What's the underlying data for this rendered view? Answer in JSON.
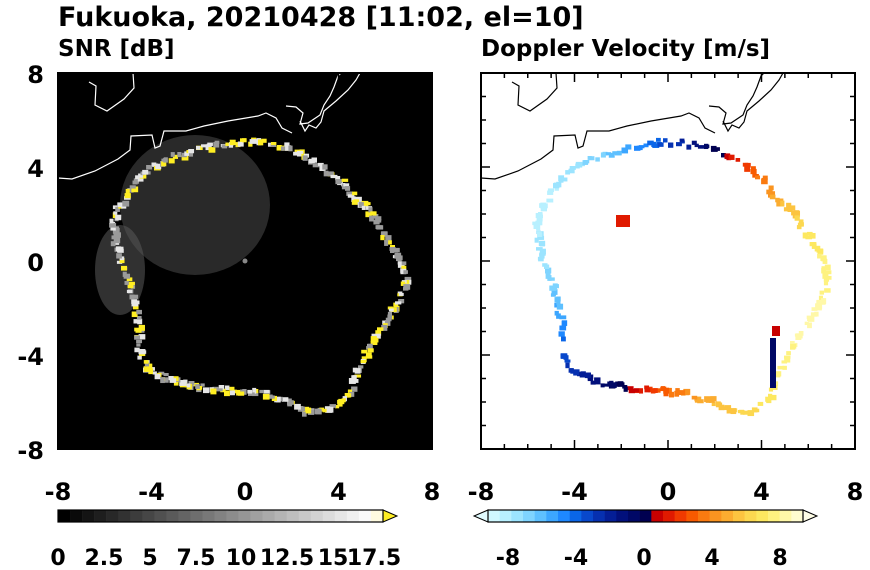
{
  "title": "Fukuoka, 20210428 [11:02, el=10]",
  "colors": {
    "panel_bg": "#000000",
    "coast": "#ffffff",
    "coast_right": "#000000",
    "snr_high": "#ffee22"
  },
  "chart_data": [
    {
      "type": "heatmap",
      "title": "SNR [dB]",
      "xlim": [
        -8,
        8
      ],
      "ylim": [
        -8,
        8
      ],
      "xticks": [
        "-8",
        "-4",
        "0",
        "4",
        "8"
      ],
      "yticks": [
        "8",
        "4",
        "0",
        "-4",
        "-8"
      ],
      "colorbar": {
        "ticks": [
          "0",
          "2.5",
          "5",
          "7.5",
          "10",
          "12.5",
          "15",
          "17.5"
        ],
        "range": [
          0,
          18
        ],
        "colors": [
          "#000000",
          "#0a0a0a",
          "#141414",
          "#1e1e1e",
          "#282828",
          "#323232",
          "#3c3c3c",
          "#464646",
          "#505050",
          "#5a5a5a",
          "#646464",
          "#6e6e6e",
          "#787878",
          "#828282",
          "#8c8c8c",
          "#969696",
          "#a0a0a0",
          "#aaaaaa",
          "#b4b4b4",
          "#bebebe",
          "#c8c8c8",
          "#d2d2d2",
          "#dcdcdc",
          "#e6e6e6",
          "#f0f0f0",
          "#fafafa",
          "#fffbe0"
        ],
        "extend_color": "#ffee22"
      }
    },
    {
      "type": "heatmap",
      "title": "Doppler Velocity [m/s]",
      "xlim": [
        -8,
        8
      ],
      "ylim": [
        -8,
        8
      ],
      "xticks": [
        "-8",
        "-4",
        "0",
        "4",
        "8"
      ],
      "colorbar": {
        "ticks": [
          "-8",
          "-4",
          "0",
          "4",
          "8"
        ],
        "range": [
          -10,
          10
        ],
        "colors": [
          "#d0f8ff",
          "#b8f0ff",
          "#9ce4ff",
          "#7fd4ff",
          "#5ec0ff",
          "#3ca6ff",
          "#1e88ff",
          "#0a66e8",
          "#0848cc",
          "#0630b0",
          "#041e96",
          "#02107c",
          "#000866",
          "#000050",
          "#c80000",
          "#e01a00",
          "#f03a00",
          "#f85a00",
          "#fa7a10",
          "#fa9420",
          "#fbac30",
          "#fcc440",
          "#fcd850",
          "#fde860",
          "#fef280",
          "#fff8a8",
          "#fffcd0"
        ],
        "extend_low": "#e0fbff",
        "extend_high": "#fffde6"
      }
    }
  ]
}
